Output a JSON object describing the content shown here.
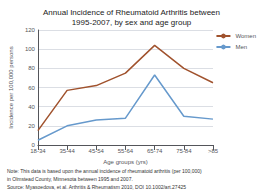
{
  "chart_data": {
    "type": "line",
    "title": "Annual Incidence of Rheumatoid Arthritis between\n1995-2007, by sex and age group",
    "x_label": "Age groups (yrs)",
    "y_label": "Incidence per 100,000 persons",
    "categories": [
      "18-34",
      "35-44",
      "45-54",
      "55-64",
      "65-74",
      "75-84",
      ">85"
    ],
    "series": [
      {
        "name": "Women",
        "color": "#a0522d",
        "values": [
          15,
          57,
          62,
          75,
          104,
          80,
          65
        ]
      },
      {
        "name": "Men",
        "color": "#6699cc",
        "values": [
          5,
          20,
          26,
          28,
          73,
          30,
          27
        ]
      }
    ],
    "ylim": [
      0,
      120
    ],
    "yticks": [
      0,
      20,
      40,
      60,
      80,
      100,
      120
    ],
    "grid": true,
    "legend": "upper right",
    "annotations": [
      "Note: This data is based upon the annual incidence of rheumatoid arthritis (per 100,000)",
      "in Olmstead County, Minnesota between 1995 and 2007.",
      "Source: Myasoedova, et al. Arthritis & Rheumatism 2010, DOI 10.1002/art.27425"
    ]
  }
}
